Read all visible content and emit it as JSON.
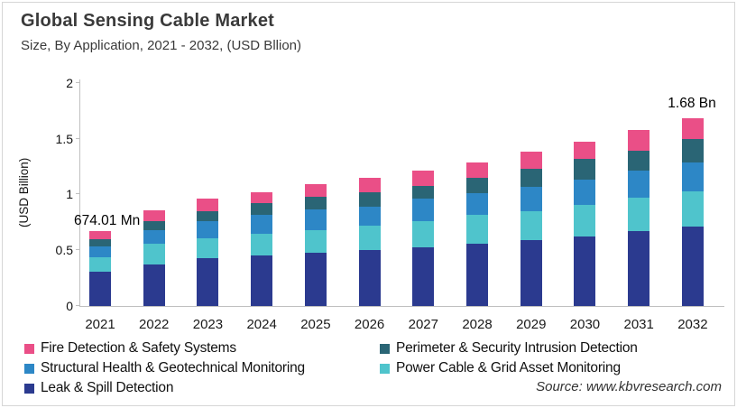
{
  "header": {
    "title": "Global Sensing Cable Market",
    "subtitle": "Size, By Application, 2021 - 2032, (USD Bllion)"
  },
  "source": "Source: www.kbvresearch.com",
  "chart_data": {
    "type": "bar",
    "stacked": true,
    "title": "Global Sensing Cable Market Size, By Application, 2021 - 2032, (USD Bllion)",
    "xlabel": "",
    "ylabel": "(USD Billion)",
    "ylim": [
      0,
      2
    ],
    "yticks": [
      "0",
      "0.5",
      "1",
      "1.5",
      "2"
    ],
    "ytick_values": [
      0,
      0.5,
      1,
      1.5,
      2
    ],
    "grid": false,
    "legend_position": "bottom",
    "categories": [
      "2021",
      "2022",
      "2023",
      "2024",
      "2025",
      "2026",
      "2027",
      "2028",
      "2029",
      "2030",
      "2031",
      "2032"
    ],
    "series": [
      {
        "name": "Leak & Spill Detection",
        "color": "#2b3a8f",
        "values": [
          0.31,
          0.37,
          0.43,
          0.45,
          0.48,
          0.5,
          0.53,
          0.56,
          0.59,
          0.62,
          0.67,
          0.71
        ]
      },
      {
        "name": "Power Cable & Grid Asset Monitoring",
        "color": "#4fc4cc",
        "values": [
          0.13,
          0.19,
          0.18,
          0.2,
          0.2,
          0.22,
          0.23,
          0.26,
          0.26,
          0.29,
          0.3,
          0.32
        ]
      },
      {
        "name": "Structural Health & Geotechnical Monitoring",
        "color": "#2d87c6",
        "values": [
          0.095,
          0.12,
          0.15,
          0.17,
          0.19,
          0.17,
          0.2,
          0.19,
          0.22,
          0.22,
          0.24,
          0.26
        ]
      },
      {
        "name": "Perimeter & Security Intrusion Detection",
        "color": "#2a6575",
        "values": [
          0.06,
          0.08,
          0.09,
          0.1,
          0.11,
          0.13,
          0.12,
          0.14,
          0.16,
          0.19,
          0.18,
          0.21
        ]
      },
      {
        "name": "Fire Detection & Safety Systems",
        "color": "#ea4f87",
        "values": [
          0.08,
          0.1,
          0.11,
          0.1,
          0.11,
          0.13,
          0.13,
          0.14,
          0.15,
          0.15,
          0.19,
          0.18
        ]
      }
    ],
    "totals": [
      0.675,
      0.86,
      0.96,
      1.02,
      1.09,
      1.15,
      1.21,
      1.29,
      1.38,
      1.47,
      1.58,
      1.68
    ],
    "annotations": [
      {
        "category": "2021",
        "text": "674.01 Mn"
      },
      {
        "category": "2032",
        "text": "1.68 Bn"
      }
    ],
    "legend_order": [
      "Fire Detection & Safety Systems",
      "Perimeter & Security Intrusion Detection",
      "Structural Health & Geotechnical Monitoring",
      "Power Cable & Grid Asset Monitoring",
      "Leak & Spill Detection"
    ]
  }
}
